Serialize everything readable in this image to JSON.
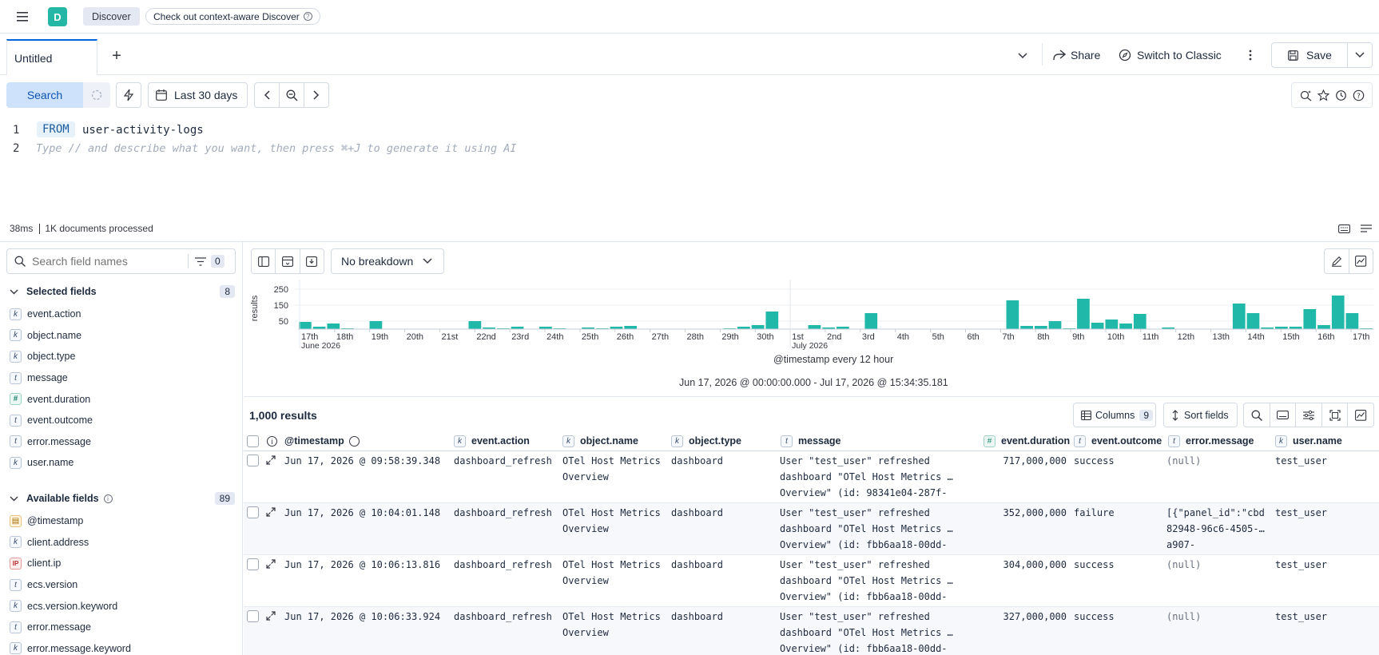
{
  "topbar": {
    "space_avatar": "D",
    "breadcrumb": "Discover",
    "context_pill": "Check out context-aware Discover"
  },
  "tabs": [
    {
      "label": "Untitled"
    }
  ],
  "tabbar_actions": {
    "share": "Share",
    "switch": "Switch to Classic",
    "save": "Save"
  },
  "query_bar": {
    "search_label": "Search",
    "date_range": "Last 30 days"
  },
  "editor": {
    "lines": [
      "1",
      "2"
    ],
    "keyword": "FROM",
    "source": "user-activity-logs",
    "placeholder": "Type // and describe what you want, then press ⌘+J to generate it using AI"
  },
  "status": {
    "duration": "38ms",
    "documents": "1K documents processed"
  },
  "sidebar": {
    "search_placeholder": "Search field names",
    "filter_count": "0",
    "selected_title": "Selected fields",
    "selected_count": "8",
    "selected_fields": [
      {
        "type": "k",
        "name": "event.action"
      },
      {
        "type": "k",
        "name": "object.name"
      },
      {
        "type": "k",
        "name": "object.type"
      },
      {
        "type": "t",
        "name": "message"
      },
      {
        "type": "#",
        "name": "event.duration"
      },
      {
        "type": "t",
        "name": "event.outcome"
      },
      {
        "type": "t",
        "name": "error.message"
      },
      {
        "type": "k",
        "name": "user.name"
      }
    ],
    "available_title": "Available fields",
    "available_count": "89",
    "available_fields": [
      {
        "type": "date",
        "name": "@timestamp"
      },
      {
        "type": "k",
        "name": "client.address"
      },
      {
        "type": "ip",
        "name": "client.ip"
      },
      {
        "type": "t",
        "name": "ecs.version"
      },
      {
        "type": "k",
        "name": "ecs.version.keyword"
      },
      {
        "type": "t",
        "name": "error.message"
      },
      {
        "type": "k",
        "name": "error.message.keyword"
      }
    ]
  },
  "histogram": {
    "breakdown": "No breakdown",
    "y_label": "results",
    "interval_label": "@timestamp every 12 hour",
    "range_label": "Jun 17, 2026 @ 00:00:00.000 - Jul 17, 2026 @ 15:34:35.181",
    "month_labels": [
      "June 2026",
      "July 2026"
    ],
    "accent": "#20b8a8"
  },
  "chart_data": {
    "type": "bar",
    "title": "",
    "xlabel": "@timestamp every 12 hour",
    "ylabel": "results",
    "y_ticks": [
      50,
      150,
      250
    ],
    "ylim": [
      0,
      260
    ],
    "x_tick_labels": [
      "17th",
      "18th",
      "19th",
      "20th",
      "21st",
      "22nd",
      "23rd",
      "24th",
      "25th",
      "26th",
      "27th",
      "28th",
      "29th",
      "30th",
      "1st",
      "2nd",
      "3rd",
      "4th",
      "5th",
      "6th",
      "7th",
      "8th",
      "9th",
      "10th",
      "11th",
      "12th",
      "13th",
      "14th",
      "15th",
      "16th",
      "17th"
    ],
    "values": [
      45,
      15,
      35,
      5,
      0,
      50,
      0,
      0,
      0,
      0,
      0,
      0,
      50,
      10,
      5,
      15,
      0,
      15,
      5,
      0,
      10,
      5,
      15,
      20,
      0,
      0,
      0,
      0,
      0,
      0,
      5,
      15,
      25,
      110,
      0,
      0,
      25,
      10,
      15,
      0,
      100,
      0,
      0,
      0,
      0,
      0,
      0,
      0,
      0,
      0,
      180,
      20,
      20,
      50,
      5,
      190,
      40,
      60,
      35,
      95,
      0,
      10,
      0,
      0,
      0,
      0,
      160,
      100,
      10,
      15,
      15,
      125,
      25,
      210,
      100,
      5
    ]
  },
  "results": {
    "count_label": "1,000 results",
    "columns_label": "Columns",
    "columns_count": "9",
    "sort_label": "Sort fields",
    "headers": [
      {
        "type": "",
        "label": "@timestamp"
      },
      {
        "type": "k",
        "label": "event.action"
      },
      {
        "type": "k",
        "label": "object.name"
      },
      {
        "type": "k",
        "label": "object.type"
      },
      {
        "type": "t",
        "label": "message"
      },
      {
        "type": "#",
        "label": "event.duration"
      },
      {
        "type": "t",
        "label": "event.outcome"
      },
      {
        "type": "t",
        "label": "error.message"
      },
      {
        "type": "k",
        "label": "user.name"
      }
    ],
    "rows": [
      {
        "timestamp": "Jun 17, 2026 @ 09:58:39.348",
        "action": "dashboard_refresh",
        "object_name_1": "OTel Host Metrics",
        "object_name_2": "Overview",
        "object_type": "dashboard",
        "message_1": "User \"test_user\" refreshed",
        "message_2": "dashboard \"OTel Host Metrics …",
        "message_3": "Overview\" (id: 98341e04-287f-",
        "duration": "717,000,000",
        "outcome": "success",
        "error_1": "(null)",
        "error_2": "",
        "error_3": "",
        "user": "test_user"
      },
      {
        "timestamp": "Jun 17, 2026 @ 10:04:01.148",
        "action": "dashboard_refresh",
        "object_name_1": "OTel Host Metrics",
        "object_name_2": "Overview",
        "object_type": "dashboard",
        "message_1": "User \"test_user\" refreshed",
        "message_2": "dashboard \"OTel Host Metrics …",
        "message_3": "Overview\" (id: fbb6aa18-00dd-",
        "duration": "352,000,000",
        "outcome": "failure",
        "error_1": "[{\"panel_id\":\"cbd",
        "error_2": "82948-96c6-4505-…",
        "error_3": "a907-",
        "user": "test_user"
      },
      {
        "timestamp": "Jun 17, 2026 @ 10:06:13.816",
        "action": "dashboard_refresh",
        "object_name_1": "OTel Host Metrics",
        "object_name_2": "Overview",
        "object_type": "dashboard",
        "message_1": "User \"test_user\" refreshed",
        "message_2": "dashboard \"OTel Host Metrics …",
        "message_3": "Overview\" (id: fbb6aa18-00dd-",
        "duration": "304,000,000",
        "outcome": "success",
        "error_1": "(null)",
        "error_2": "",
        "error_3": "",
        "user": "test_user"
      },
      {
        "timestamp": "Jun 17, 2026 @ 10:06:33.924",
        "action": "dashboard_refresh",
        "object_name_1": "OTel Host Metrics",
        "object_name_2": "Overview",
        "object_type": "dashboard",
        "message_1": "User \"test_user\" refreshed",
        "message_2": "dashboard \"OTel Host Metrics …",
        "message_3": "Overview\" (id: fbb6aa18-00dd-",
        "duration": "327,000,000",
        "outcome": "success",
        "error_1": "(null)",
        "error_2": "",
        "error_3": "",
        "user": "test_user"
      }
    ]
  }
}
